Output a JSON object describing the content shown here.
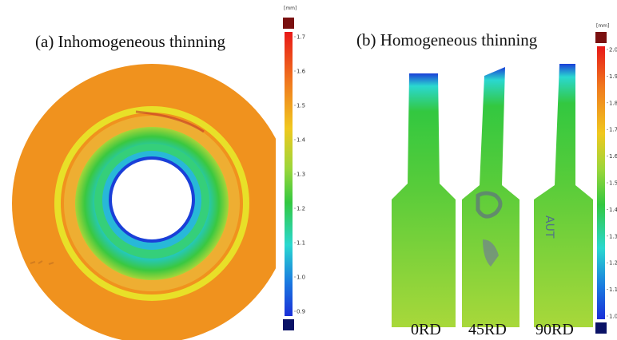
{
  "panel_a": {
    "title": "(a) Inhomogeneous thinning",
    "colorbar": {
      "unit": "[mm]",
      "ticks": [
        "1.7",
        "1.6",
        "1.5",
        "1.4",
        "1.3",
        "1.2",
        "1.1",
        "1.0",
        "0.9"
      ]
    }
  },
  "panel_b": {
    "title": "(b) Homogeneous thinning",
    "colorbar": {
      "unit": "[mm]",
      "ticks": [
        "2.0",
        "1.9",
        "1.8",
        "1.7",
        "1.6",
        "1.5",
        "1.4",
        "1.3",
        "1.2",
        "1.1",
        "1.0"
      ]
    },
    "specimen_labels": [
      "0RD",
      "45RD",
      "90RD"
    ]
  },
  "colors": {
    "orange": "#f0921e",
    "yellow": "#e8e028",
    "green": "#33c840",
    "cyan": "#2ad8d0",
    "blue": "#1a3fd8",
    "lime": "#9cd63a",
    "dark_red": "#7a1010",
    "navy": "#0a1266"
  }
}
